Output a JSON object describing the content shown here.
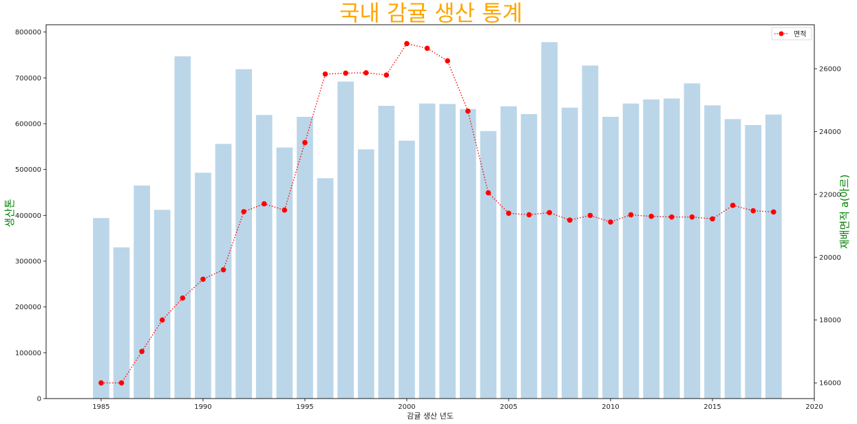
{
  "chart_data": {
    "type": "bar+line",
    "title": "국내 감귤 생산 통계",
    "xlabel": "감귤 생산 년도",
    "ylabel_left": "생산톤",
    "ylabel_right": "재배면적 a(아르)",
    "x": [
      1985,
      1986,
      1987,
      1988,
      1989,
      1990,
      1991,
      1992,
      1993,
      1994,
      1995,
      1996,
      1997,
      1998,
      1999,
      2000,
      2001,
      2002,
      2003,
      2004,
      2005,
      2006,
      2007,
      2008,
      2009,
      2010,
      2011,
      2012,
      2013,
      2014,
      2015,
      2016,
      2017,
      2018
    ],
    "series": [
      {
        "kind": "bar",
        "axis": "left",
        "values": [
          394000,
          330000,
          465000,
          412000,
          747000,
          493000,
          556000,
          719000,
          619000,
          548000,
          615000,
          481000,
          692000,
          544000,
          639000,
          563000,
          644000,
          643000,
          632000,
          584000,
          638000,
          621000,
          778000,
          635000,
          727000,
          615000,
          644000,
          653000,
          655000,
          688000,
          640000,
          610000,
          597000,
          620000
        ]
      },
      {
        "kind": "line",
        "axis": "right",
        "name": "면적",
        "values": [
          16000,
          16000,
          17000,
          18000,
          18700,
          19300,
          19600,
          21450,
          21700,
          21500,
          23650,
          25830,
          25860,
          25870,
          25800,
          26800,
          26650,
          26250,
          24650,
          22050,
          21400,
          21350,
          21420,
          21180,
          21330,
          21120,
          21350,
          21300,
          21280,
          21280,
          21220,
          21650,
          21480,
          21440
        ]
      }
    ],
    "xlim": [
      1982.3,
      2020
    ],
    "ylim_left": [
      0,
      816000
    ],
    "ylim_right": [
      15500,
      27400
    ],
    "x_ticks": [
      1985,
      1990,
      1995,
      2000,
      2005,
      2010,
      2015,
      2020
    ],
    "y_left_ticks": [
      0,
      100000,
      200000,
      300000,
      400000,
      500000,
      600000,
      700000,
      800000
    ],
    "y_right_ticks": [
      16000,
      18000,
      20000,
      22000,
      24000,
      26000
    ],
    "grid": false,
    "legend_placement": "top-right",
    "colors": {
      "bar": "#bbd6e8",
      "line": "#ff0000",
      "marker": "#ff0000",
      "title": "#ffa500",
      "axis_label": "#008000",
      "axes": "#000000"
    }
  }
}
